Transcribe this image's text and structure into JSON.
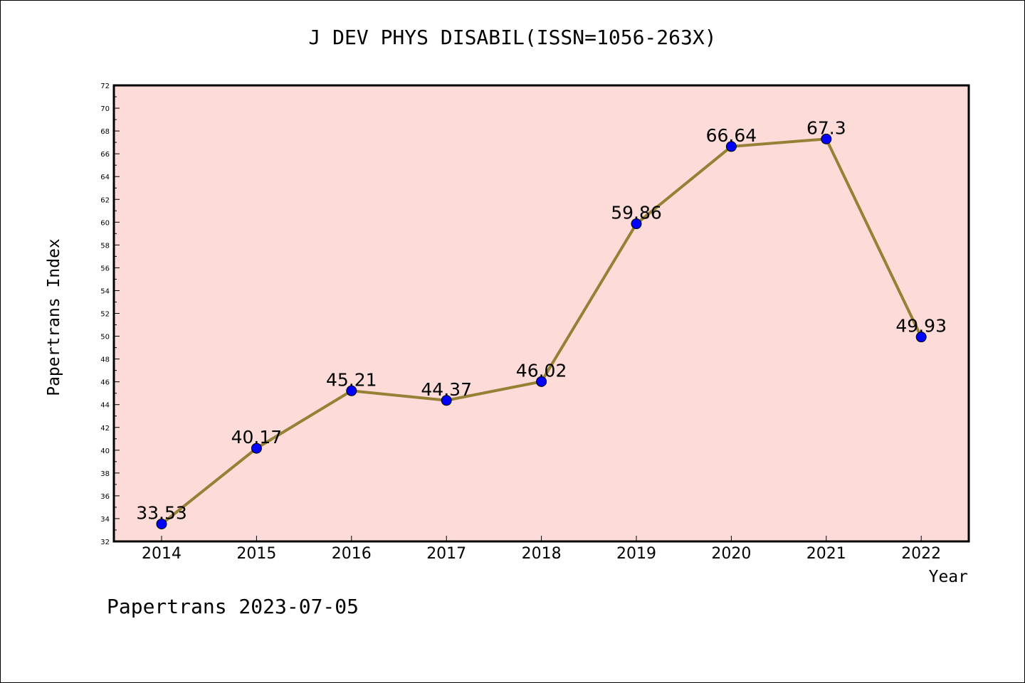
{
  "chart_data": {
    "type": "line",
    "title": "J DEV PHYS DISABIL(ISSN=1056-263X)",
    "xlabel": "Year",
    "ylabel": "Papertrans Index",
    "categories": [
      "2014",
      "2015",
      "2016",
      "2017",
      "2018",
      "2019",
      "2020",
      "2021",
      "2022"
    ],
    "series": [
      {
        "values": [
          33.53,
          40.17,
          45.21,
          44.37,
          46.02,
          59.86,
          66.64,
          67.3,
          49.93
        ],
        "data_labels": [
          "33.53",
          "40.17",
          "45.21",
          "44.37",
          "46.02",
          "59.86",
          "66.64",
          "67.3",
          "49.93"
        ],
        "line_color": "#948136",
        "marker_color": "#0000ff"
      }
    ],
    "ylim": [
      32,
      72
    ],
    "yticks": [
      "32",
      "34",
      "36",
      "38",
      "40",
      "42",
      "44",
      "46",
      "48",
      "50",
      "52",
      "54",
      "56",
      "58",
      "60",
      "62",
      "64",
      "66",
      "68",
      "70",
      "72"
    ],
    "plot_background": "#fddbd8",
    "grid": false,
    "legend": "none"
  },
  "footer": "Papertrans 2023-07-05"
}
